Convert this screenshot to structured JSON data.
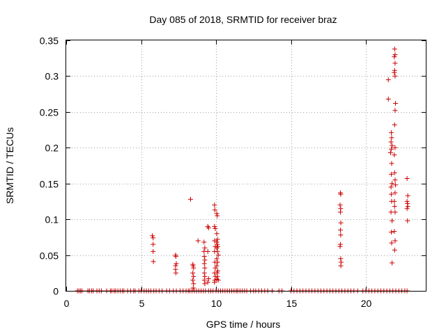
{
  "chart_data": {
    "type": "scatter",
    "title": "Day 085 of 2018, SRMTID for receiver braz",
    "xlabel": "GPS time / hours",
    "ylabel": "SRMTID / TECUs",
    "xlim": [
      0,
      24
    ],
    "ylim": [
      0,
      0.35
    ],
    "x_ticks": [
      0,
      5,
      10,
      15,
      20
    ],
    "x_tick_labels": [
      "0",
      "5",
      "10",
      "15",
      "20"
    ],
    "y_ticks": [
      0,
      0.05,
      0.1,
      0.15,
      0.2,
      0.25,
      0.3,
      0.35
    ],
    "y_tick_labels": [
      "0",
      "0.05",
      "0.1",
      "0.15",
      "0.2",
      "0.25",
      "0.3",
      "0.35"
    ],
    "grid": true,
    "marker": "+",
    "colors": {
      "series": "#cc0000"
    },
    "series": [
      {
        "name": "SRMTID",
        "points": [
          [
            0.75,
            0
          ],
          [
            0.85,
            0
          ],
          [
            0.95,
            0
          ],
          [
            1.05,
            0
          ],
          [
            1.45,
            0
          ],
          [
            1.55,
            0
          ],
          [
            1.7,
            0
          ],
          [
            1.8,
            0
          ],
          [
            2.05,
            0
          ],
          [
            2.2,
            0
          ],
          [
            2.35,
            0
          ],
          [
            2.7,
            0
          ],
          [
            2.95,
            0
          ],
          [
            3.05,
            0
          ],
          [
            3.2,
            0
          ],
          [
            3.3,
            0
          ],
          [
            3.45,
            0
          ],
          [
            3.6,
            0
          ],
          [
            3.75,
            0
          ],
          [
            3.85,
            0
          ],
          [
            4.1,
            0
          ],
          [
            4.3,
            0
          ],
          [
            4.5,
            0
          ],
          [
            4.6,
            0
          ],
          [
            4.85,
            0
          ],
          [
            5.0,
            0
          ],
          [
            5.2,
            0
          ],
          [
            5.35,
            0
          ],
          [
            5.5,
            0
          ],
          [
            5.65,
            0
          ],
          [
            5.85,
            0
          ],
          [
            6.0,
            0
          ],
          [
            6.2,
            0
          ],
          [
            6.4,
            0
          ],
          [
            6.7,
            0
          ],
          [
            6.9,
            0
          ],
          [
            7.15,
            0
          ],
          [
            7.35,
            0
          ],
          [
            7.6,
            0
          ],
          [
            7.8,
            0
          ],
          [
            8.0,
            0
          ],
          [
            8.15,
            0
          ],
          [
            8.25,
            0
          ],
          [
            8.4,
            0
          ],
          [
            8.55,
            0
          ],
          [
            8.7,
            0
          ],
          [
            8.85,
            0
          ],
          [
            9.0,
            0
          ],
          [
            9.15,
            0
          ],
          [
            9.3,
            0
          ],
          [
            9.5,
            0
          ],
          [
            9.65,
            0
          ],
          [
            9.8,
            0
          ],
          [
            10.0,
            0
          ],
          [
            10.15,
            0
          ],
          [
            10.3,
            0
          ],
          [
            10.45,
            0
          ],
          [
            10.6,
            0
          ],
          [
            10.75,
            0
          ],
          [
            10.9,
            0
          ],
          [
            11.05,
            0
          ],
          [
            11.2,
            0
          ],
          [
            11.35,
            0
          ],
          [
            11.45,
            0
          ],
          [
            11.6,
            0
          ],
          [
            11.75,
            0
          ],
          [
            11.9,
            0
          ],
          [
            12.05,
            0
          ],
          [
            12.3,
            0
          ],
          [
            12.5,
            0
          ],
          [
            12.65,
            0
          ],
          [
            12.85,
            0
          ],
          [
            13.05,
            0
          ],
          [
            13.25,
            0
          ],
          [
            13.45,
            0
          ],
          [
            13.75,
            0
          ],
          [
            14.2,
            0
          ],
          [
            14.4,
            0
          ],
          [
            15.0,
            0
          ],
          [
            15.2,
            0
          ],
          [
            15.4,
            0
          ],
          [
            15.6,
            0
          ],
          [
            15.8,
            0
          ],
          [
            16.0,
            0
          ],
          [
            16.2,
            0
          ],
          [
            16.4,
            0
          ],
          [
            16.6,
            0
          ],
          [
            16.8,
            0
          ],
          [
            17.0,
            0
          ],
          [
            17.2,
            0
          ],
          [
            17.4,
            0
          ],
          [
            17.6,
            0
          ],
          [
            17.8,
            0
          ],
          [
            18.0,
            0
          ],
          [
            18.2,
            0
          ],
          [
            18.4,
            0
          ],
          [
            18.6,
            0
          ],
          [
            18.8,
            0
          ],
          [
            19.0,
            0
          ],
          [
            19.2,
            0
          ],
          [
            19.45,
            0
          ],
          [
            19.8,
            0
          ],
          [
            20.0,
            0
          ],
          [
            20.2,
            0
          ],
          [
            20.4,
            0
          ],
          [
            20.6,
            0
          ],
          [
            20.8,
            0
          ],
          [
            21.0,
            0
          ],
          [
            21.2,
            0
          ],
          [
            21.4,
            0
          ],
          [
            21.6,
            0
          ],
          [
            21.8,
            0
          ],
          [
            22.0,
            0
          ],
          [
            22.2,
            0
          ],
          [
            22.4,
            0
          ],
          [
            22.6,
            0
          ],
          [
            22.75,
            0
          ],
          [
            5.75,
            0.077
          ],
          [
            5.8,
            0.074
          ],
          [
            5.8,
            0.065
          ],
          [
            5.8,
            0.055
          ],
          [
            5.82,
            0.041
          ],
          [
            7.3,
            0.05
          ],
          [
            7.32,
            0.048
          ],
          [
            7.35,
            0.038
          ],
          [
            7.3,
            0.035
          ],
          [
            7.3,
            0.03
          ],
          [
            7.32,
            0.025
          ],
          [
            8.3,
            0.128
          ],
          [
            8.45,
            0.037
          ],
          [
            8.47,
            0.035
          ],
          [
            8.5,
            0.032
          ],
          [
            8.45,
            0.025
          ],
          [
            8.5,
            0.02
          ],
          [
            8.45,
            0.015
          ],
          [
            8.5,
            0.01
          ],
          [
            8.48,
            0.004
          ],
          [
            8.8,
            0.07
          ],
          [
            9.2,
            0.068
          ],
          [
            9.25,
            0.06
          ],
          [
            9.2,
            0.055
          ],
          [
            9.22,
            0.048
          ],
          [
            9.25,
            0.043
          ],
          [
            9.22,
            0.038
          ],
          [
            9.25,
            0.032
          ],
          [
            9.22,
            0.025
          ],
          [
            9.25,
            0.02
          ],
          [
            9.22,
            0.015
          ],
          [
            9.25,
            0.01
          ],
          [
            9.45,
            0.09
          ],
          [
            9.5,
            0.088
          ],
          [
            9.45,
            0.055
          ],
          [
            9.5,
            0.017
          ],
          [
            9.45,
            0.012
          ],
          [
            9.9,
            0.12
          ],
          [
            9.92,
            0.113
          ],
          [
            9.9,
            0.09
          ],
          [
            9.95,
            0.087
          ],
          [
            9.9,
            0.07
          ],
          [
            9.95,
            0.062
          ],
          [
            9.9,
            0.055
          ],
          [
            9.92,
            0.04
          ],
          [
            9.95,
            0.032
          ],
          [
            9.9,
            0.025
          ],
          [
            9.95,
            0.02
          ],
          [
            9.92,
            0.015
          ],
          [
            9.9,
            0.012
          ],
          [
            10.05,
            0.108
          ],
          [
            10.08,
            0.105
          ],
          [
            10.05,
            0.08
          ],
          [
            10.1,
            0.072
          ],
          [
            10.05,
            0.068
          ],
          [
            10.08,
            0.065
          ],
          [
            10.12,
            0.062
          ],
          [
            10.05,
            0.06
          ],
          [
            10.1,
            0.055
          ],
          [
            10.15,
            0.05
          ],
          [
            10.05,
            0.045
          ],
          [
            10.1,
            0.04
          ],
          [
            10.05,
            0.035
          ],
          [
            10.12,
            0.028
          ],
          [
            10.08,
            0.025
          ],
          [
            10.1,
            0.02
          ],
          [
            10.05,
            0.016
          ],
          [
            10.15,
            0.015
          ],
          [
            18.3,
            0.137
          ],
          [
            18.32,
            0.135
          ],
          [
            18.28,
            0.12
          ],
          [
            18.32,
            0.115
          ],
          [
            18.3,
            0.11
          ],
          [
            18.33,
            0.095
          ],
          [
            18.3,
            0.085
          ],
          [
            18.32,
            0.078
          ],
          [
            18.3,
            0.065
          ],
          [
            18.28,
            0.062
          ],
          [
            18.32,
            0.045
          ],
          [
            18.35,
            0.04
          ],
          [
            18.33,
            0.035
          ],
          [
            21.5,
            0.295
          ],
          [
            21.5,
            0.268
          ],
          [
            21.7,
            0.221
          ],
          [
            21.72,
            0.214
          ],
          [
            21.68,
            0.208
          ],
          [
            21.75,
            0.203
          ],
          [
            21.7,
            0.198
          ],
          [
            21.65,
            0.193
          ],
          [
            21.72,
            0.178
          ],
          [
            21.7,
            0.163
          ],
          [
            21.75,
            0.15
          ],
          [
            21.68,
            0.145
          ],
          [
            21.7,
            0.135
          ],
          [
            21.72,
            0.125
          ],
          [
            21.68,
            0.11
          ],
          [
            21.75,
            0.098
          ],
          [
            21.7,
            0.082
          ],
          [
            21.72,
            0.067
          ],
          [
            21.75,
            0.039
          ],
          [
            21.92,
            0.338
          ],
          [
            21.95,
            0.33
          ],
          [
            21.9,
            0.327
          ],
          [
            21.95,
            0.318
          ],
          [
            21.92,
            0.308
          ],
          [
            21.9,
            0.305
          ],
          [
            21.95,
            0.3
          ],
          [
            21.98,
            0.262
          ],
          [
            21.95,
            0.252
          ],
          [
            21.92,
            0.232
          ],
          [
            21.95,
            0.2
          ],
          [
            21.9,
            0.19
          ],
          [
            21.92,
            0.165
          ],
          [
            21.95,
            0.155
          ],
          [
            21.98,
            0.148
          ],
          [
            21.95,
            0.137
          ],
          [
            21.9,
            0.125
          ],
          [
            21.92,
            0.118
          ],
          [
            21.95,
            0.11
          ],
          [
            21.9,
            0.083
          ],
          [
            21.95,
            0.07
          ],
          [
            21.92,
            0.057
          ],
          [
            22.75,
            0.157
          ],
          [
            22.8,
            0.133
          ],
          [
            22.75,
            0.125
          ],
          [
            22.78,
            0.122
          ],
          [
            22.8,
            0.118
          ],
          [
            22.75,
            0.115
          ],
          [
            22.78,
            0.098
          ]
        ]
      }
    ]
  }
}
